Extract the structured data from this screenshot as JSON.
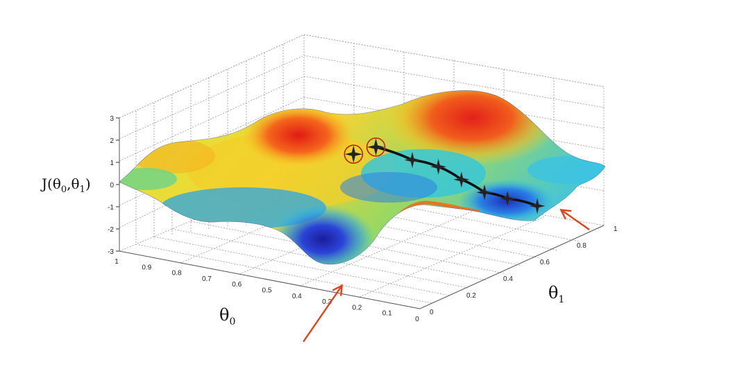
{
  "chart_data": {
    "type": "surface3d",
    "title": "",
    "zlabel_main": "J(θ",
    "zlabel_sub0": "0",
    "zlabel_comma": ",θ",
    "zlabel_sub1": "1",
    "zlabel_close": ")",
    "xlabel_main": "θ",
    "xlabel_sub": "0",
    "ylabel_main": "θ",
    "ylabel_sub": "1",
    "x_ticks": [
      "1",
      "0.9",
      "0.8",
      "0.7",
      "0.6",
      "0.5",
      "0.4",
      "0.3",
      "0.2",
      "0.1",
      "0"
    ],
    "y_ticks": [
      "0",
      "0.2",
      "0.4",
      "0.6",
      "0.8",
      "1"
    ],
    "z_ticks": [
      "3",
      "2",
      "1",
      "0",
      "-1",
      "-2",
      "-3"
    ],
    "xlim": [
      0,
      1
    ],
    "ylim": [
      0,
      1
    ],
    "zlim": [
      -3,
      3
    ],
    "colormap": [
      "#1f1fb4",
      "#1a7ee6",
      "#21c7e8",
      "#67d69a",
      "#d7e338",
      "#f6c21f",
      "#f27a1c",
      "#d9231a"
    ],
    "path_color": "#111111",
    "arrow_color": "#e0441c",
    "gradient_path": [
      {
        "x": 0.33,
        "y": 0.3,
        "z": 2.3
      },
      {
        "x": 0.27,
        "y": 0.4,
        "z": 1.5
      },
      {
        "x": 0.22,
        "y": 0.46,
        "z": 1.1
      },
      {
        "x": 0.18,
        "y": 0.52,
        "z": 0.4
      },
      {
        "x": 0.14,
        "y": 0.58,
        "z": -0.3
      },
      {
        "x": 0.1,
        "y": 0.64,
        "z": -0.7
      },
      {
        "x": 0.05,
        "y": 0.72,
        "z": -1.2
      }
    ],
    "start_points": [
      {
        "x": 0.38,
        "y": 0.26,
        "z": 2.0
      },
      {
        "x": 0.33,
        "y": 0.3,
        "z": 2.3
      }
    ],
    "minima_arrows": [
      {
        "x": 0.29,
        "y": 0.05,
        "z": -2.9
      },
      {
        "x": 0.02,
        "y": 0.8,
        "z": -1.6
      }
    ]
  }
}
